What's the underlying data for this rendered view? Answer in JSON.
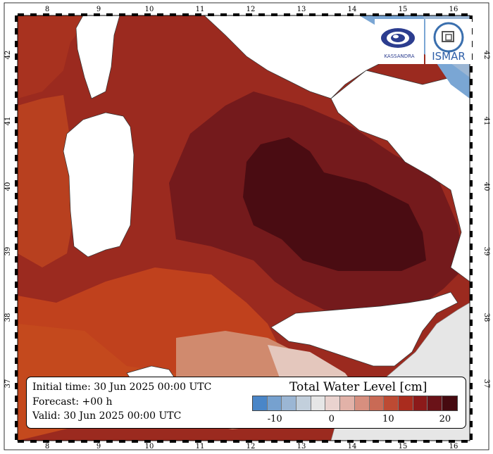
{
  "map": {
    "lon_ticks": [
      "8",
      "9",
      "10",
      "11",
      "12",
      "13",
      "14",
      "15",
      "16"
    ],
    "lat_ticks": [
      "42",
      "41",
      "40",
      "39",
      "38",
      "37"
    ]
  },
  "info": {
    "initial_time": "Initial time: 30 Jun 2025 00:00 UTC",
    "forecast": "Forecast: +00 h",
    "valid": "Valid: 30 Jun 2025 00:00 UTC"
  },
  "legend": {
    "title": "Total Water Level [cm]",
    "tick_labels": [
      "-10",
      "0",
      "10",
      "20"
    ],
    "tick_values": [
      -10,
      0,
      10,
      20
    ],
    "range": [
      -14,
      22
    ],
    "colors": [
      "#4a86c8",
      "#76a1cf",
      "#9bb6d4",
      "#c2cfdc",
      "#e6e6e6",
      "#ead3cf",
      "#e2b2a8",
      "#d78f7f",
      "#c96a55",
      "#bd4a33",
      "#aa2c1e",
      "#8c1a1a",
      "#6a1218",
      "#460a10"
    ]
  },
  "logos": {
    "left_text": "KASSANDRA",
    "right_text": "ISMAR"
  },
  "colors": {
    "land": "#ffffff",
    "land_grey": "#e6e6e6",
    "sea_blue": "#7aa6d4"
  }
}
